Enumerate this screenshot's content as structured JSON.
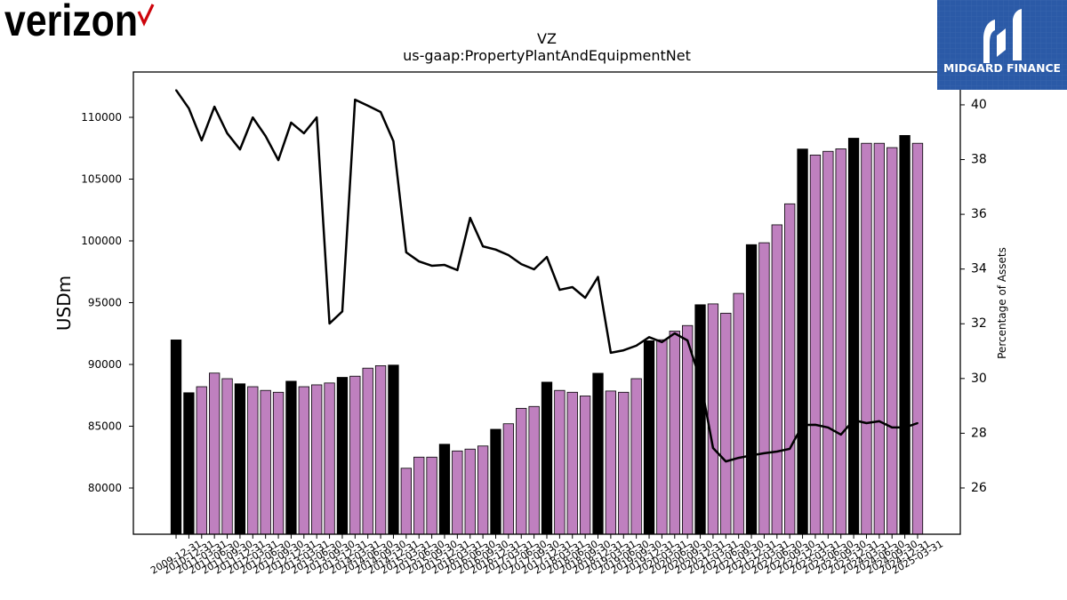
{
  "logos": {
    "verizon": {
      "text": "verizon",
      "text_color": "#000000",
      "check_color": "#cd040b",
      "icon": "verizon-check-icon"
    },
    "midgard": {
      "text": "MIDGARD FINANCE",
      "background": "#2b5aa7",
      "foreground": "#ffffff",
      "icon": "midgard-m-icon"
    }
  },
  "chart_data": {
    "type": "bar",
    "title": "VZ",
    "subtitle": "us-gaap:PropertyPlantAndEquipmentNet",
    "ylabel": "USDm",
    "y2label": "Percentage of Assets",
    "ylim": [
      76260,
      113670
    ],
    "y2lim": [
      24.31,
      41.2
    ],
    "yticks": [
      80000,
      85000,
      90000,
      95000,
      100000,
      105000,
      110000
    ],
    "y2ticks": [
      26,
      28,
      30,
      32,
      34,
      36,
      38,
      40
    ],
    "grid": false,
    "legend": "none",
    "categories": [
      "2009-12-31",
      "2010-12-31",
      "2011-03-31",
      "2011-06-30",
      "2011-09-30",
      "2011-12-31",
      "2012-03-31",
      "2012-06-30",
      "2012-09-30",
      "2012-12-31",
      "2013-03-31",
      "2013-06-30",
      "2013-09-30",
      "2013-12-31",
      "2014-03-31",
      "2014-06-30",
      "2014-09-30",
      "2014-12-31",
      "2015-03-31",
      "2015-06-30",
      "2015-09-30",
      "2015-12-31",
      "2016-03-31",
      "2016-06-30",
      "2016-09-30",
      "2016-12-31",
      "2017-03-31",
      "2017-06-30",
      "2017-09-30",
      "2017-12-31",
      "2018-03-31",
      "2018-06-30",
      "2018-09-30",
      "2018-12-31",
      "2019-03-31",
      "2019-06-30",
      "2019-09-30",
      "2019-12-31",
      "2020-03-31",
      "2020-06-30",
      "2020-09-30",
      "2020-12-31",
      "2021-03-31",
      "2021-06-30",
      "2021-09-30",
      "2021-12-31",
      "2022-03-31",
      "2022-06-30",
      "2022-09-30",
      "2022-12-31",
      "2023-03-31",
      "2023-06-30",
      "2023-09-30",
      "2023-12-31",
      "2024-03-31",
      "2024-06-30",
      "2024-09-30",
      "2024-12-31",
      "2025-03-31"
    ],
    "series": [
      {
        "type": "bar",
        "axis": "left",
        "values": [
          91985,
          87711,
          88200,
          89300,
          88850,
          88434,
          88200,
          87900,
          87750,
          88642,
          88200,
          88350,
          88500,
          88956,
          89050,
          89700,
          89900,
          89947,
          81600,
          82500,
          82500,
          83541,
          83000,
          83150,
          83400,
          84751,
          85200,
          86450,
          86600,
          88568,
          87900,
          87750,
          87450,
          89286,
          87850,
          87750,
          88850,
          91915,
          92000,
          92700,
          93150,
          94833,
          94900,
          94150,
          95750,
          99696,
          99850,
          101300,
          103000,
          107434,
          106950,
          107250,
          107450,
          108310,
          107900,
          107900,
          107550,
          108534,
          107900
        ]
      },
      {
        "type": "line",
        "axis": "right",
        "values": [
          40.54,
          39.87,
          38.7,
          39.93,
          38.96,
          38.37,
          39.54,
          38.86,
          37.98,
          39.35,
          38.96,
          39.54,
          32.01,
          32.45,
          40.19,
          39.97,
          39.74,
          38.67,
          34.61,
          34.28,
          34.12,
          34.15,
          33.96,
          35.87,
          34.83,
          34.71,
          34.51,
          34.18,
          33.99,
          34.44,
          33.24,
          33.34,
          32.95,
          33.71,
          30.94,
          31.03,
          31.2,
          31.51,
          31.33,
          31.65,
          31.39,
          29.96,
          27.46,
          26.97,
          27.1,
          27.19,
          27.27,
          27.33,
          27.43,
          28.3,
          28.31,
          28.21,
          27.95,
          28.48,
          28.37,
          28.44,
          28.21,
          28.21,
          28.37
        ]
      }
    ],
    "colors": {
      "year_end_bar": "#000000",
      "quarter_bar": "#bf80bf",
      "bar_edge": "#000000",
      "line": "#000000"
    }
  }
}
